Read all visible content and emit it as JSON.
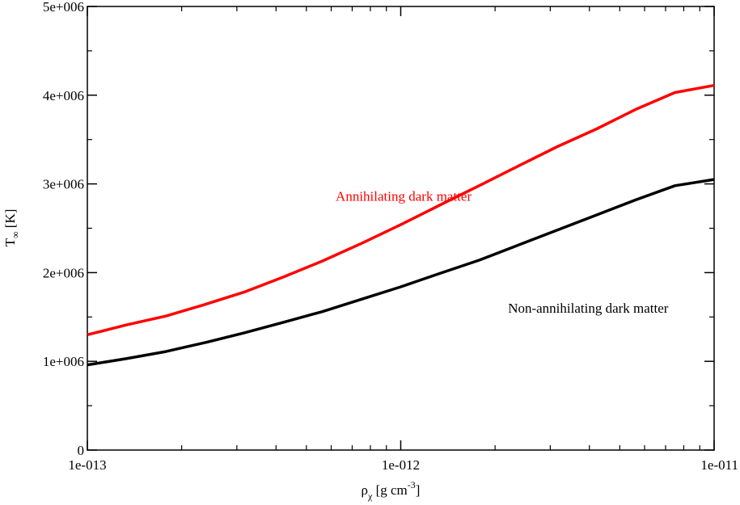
{
  "chart_data": {
    "type": "line",
    "xscale": "log",
    "xlim": [
      1e-13,
      1e-11
    ],
    "ylim": [
      0,
      5000000
    ],
    "xticks": [
      {
        "value": 1e-13,
        "label": "1e-013"
      },
      {
        "value": 1e-12,
        "label": "1e-012"
      },
      {
        "value": 1e-11,
        "label": "1e-011"
      }
    ],
    "yticks": [
      {
        "value": 0,
        "label": "0"
      },
      {
        "value": 1000000,
        "label": "1e+006"
      },
      {
        "value": 2000000,
        "label": "2e+006"
      },
      {
        "value": 3000000,
        "label": "3e+006"
      },
      {
        "value": 4000000,
        "label": "4e+006"
      },
      {
        "value": 5000000,
        "label": "5e+006"
      }
    ],
    "xlabel": {
      "base": "ρ",
      "sub": "χ",
      "unit_prefix": " [g cm",
      "sup": "-3",
      "unit_suffix": "]"
    },
    "ylabel": {
      "base": "T",
      "sub": "∞",
      "unit": " [K]"
    },
    "grid": false,
    "series": [
      {
        "name": "Annihilating dark matter",
        "color": "#ff0000",
        "x": [
          1e-13,
          1.33e-13,
          1.78e-13,
          2.37e-13,
          3.16e-13,
          4.22e-13,
          5.62e-13,
          7.5e-13,
          1e-12,
          1.33e-12,
          1.78e-12,
          2.37e-12,
          3.16e-12,
          4.22e-12,
          5.62e-12,
          7.5e-12,
          1e-11
        ],
        "y": [
          1300000,
          1410000,
          1510000,
          1640000,
          1780000,
          1950000,
          2130000,
          2330000,
          2540000,
          2760000,
          2980000,
          3200000,
          3420000,
          3620000,
          3840000,
          4030000,
          4110000
        ]
      },
      {
        "name": "Non-annihilating dark matter",
        "color": "#000000",
        "x": [
          1e-13,
          1.33e-13,
          1.78e-13,
          2.37e-13,
          3.16e-13,
          4.22e-13,
          5.62e-13,
          7.5e-13,
          1e-12,
          1.33e-12,
          1.78e-12,
          2.37e-12,
          3.16e-12,
          4.22e-12,
          5.62e-12,
          7.5e-12,
          1e-11
        ],
        "y": [
          960000,
          1030000,
          1110000,
          1210000,
          1320000,
          1440000,
          1560000,
          1700000,
          1840000,
          1990000,
          2140000,
          2310000,
          2480000,
          2650000,
          2820000,
          2980000,
          3050000
        ]
      }
    ],
    "annotations": [
      {
        "text": "Annihilating dark matter",
        "color": "#ff0000",
        "x": 6.2e-13,
        "y": 2810000
      },
      {
        "text": "Non-annihilating dark matter",
        "color": "#000000",
        "x": 2.2e-12,
        "y": 1550000
      }
    ]
  }
}
